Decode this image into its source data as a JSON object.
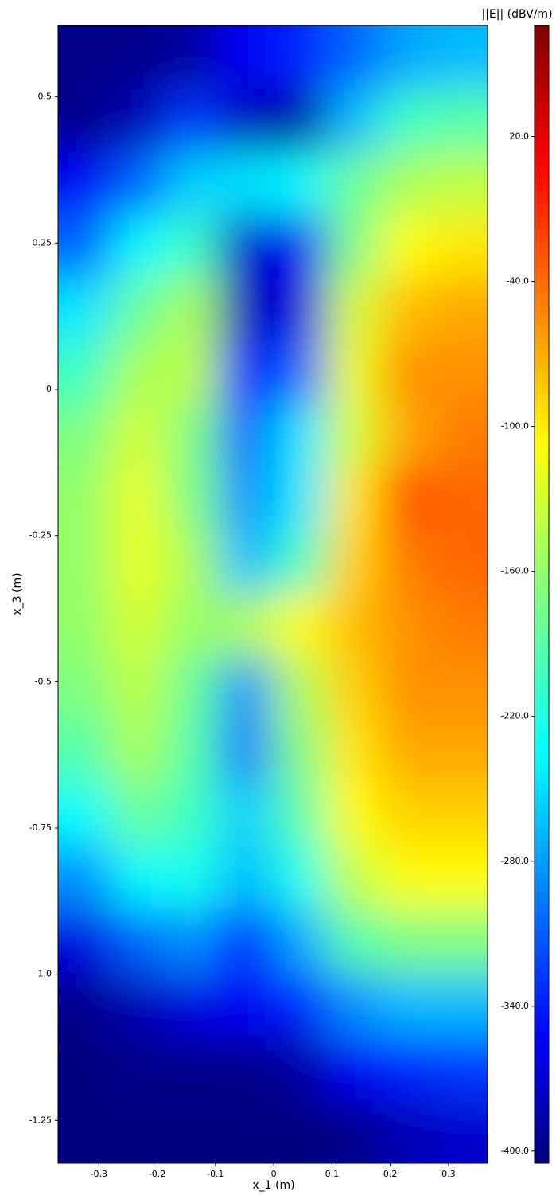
{
  "chart_data": {
    "type": "heatmap",
    "xlabel": "x_1 (m)",
    "ylabel": "x_3 (m)",
    "colorbar_label": "||E|| (dBV/m)",
    "colormap": "jet",
    "x": [
      -0.324,
      -0.232,
      -0.14,
      -0.048,
      0.044,
      0.136,
      0.228,
      0.32
    ],
    "y": [
      0.568,
      0.46,
      0.352,
      0.244,
      0.136,
      0.028,
      -0.08,
      -0.188,
      -0.296,
      -0.404,
      -0.512,
      -0.62,
      -0.728,
      -0.836,
      -0.944,
      -1.052,
      -1.16,
      -1.268
    ],
    "values": [
      [
        -400,
        -400,
        -390,
        -350,
        -330,
        -300,
        -270,
        -260
      ],
      [
        -400,
        -380,
        -320,
        -380,
        -390,
        -260,
        -200,
        -190
      ],
      [
        -350,
        -300,
        -250,
        -240,
        -230,
        -180,
        -150,
        -140
      ],
      [
        -300,
        -230,
        -200,
        -370,
        -350,
        -170,
        -110,
        -100
      ],
      [
        -240,
        -180,
        -150,
        -380,
        -360,
        -130,
        -80,
        -70
      ],
      [
        -200,
        -150,
        -140,
        -340,
        -300,
        -120,
        -60,
        -60
      ],
      [
        -170,
        -130,
        -170,
        -300,
        -240,
        -130,
        -70,
        -50
      ],
      [
        -160,
        -120,
        -170,
        -280,
        -240,
        -100,
        -30,
        -40
      ],
      [
        -160,
        -120,
        -150,
        -260,
        -200,
        -90,
        -50,
        -40
      ],
      [
        -160,
        -130,
        -160,
        -150,
        -110,
        -80,
        -60,
        -50
      ],
      [
        -170,
        -140,
        -180,
        -280,
        -150,
        -90,
        -60,
        -60
      ],
      [
        -190,
        -150,
        -190,
        -290,
        -170,
        -100,
        -70,
        -70
      ],
      [
        -230,
        -180,
        -200,
        -250,
        -190,
        -110,
        -90,
        -90
      ],
      [
        -280,
        -230,
        -220,
        -260,
        -220,
        -140,
        -110,
        -110
      ],
      [
        -360,
        -300,
        -280,
        -330,
        -270,
        -190,
        -170,
        -170
      ],
      [
        -400,
        -380,
        -360,
        -350,
        -330,
        -280,
        -260,
        -260
      ],
      [
        -405,
        -400,
        -400,
        -400,
        -390,
        -350,
        -330,
        -320
      ],
      [
        -405,
        -405,
        -405,
        -405,
        -405,
        -400,
        -380,
        -370
      ]
    ],
    "xlim": [
      -0.37,
      0.367
    ],
    "ylim": [
      -1.323,
      0.622
    ],
    "xticks": [
      -0.3,
      -0.2,
      -0.1,
      0,
      0.1,
      0.2,
      0.3
    ],
    "yticks": [
      0.5,
      0.25,
      0,
      -0.25,
      -0.5,
      -0.75,
      {
        "value": -1.0,
        "label": "-1.0"
      },
      -1.25
    ],
    "clim": [
      -405,
      66
    ],
    "cticks": [
      {
        "value": 20,
        "label": "20.0"
      },
      {
        "value": -40,
        "label": "-40.0"
      },
      {
        "value": -100,
        "label": "-100.0"
      },
      {
        "value": -160,
        "label": "-160.0"
      },
      {
        "value": -220,
        "label": "-220.0"
      },
      {
        "value": -280,
        "label": "-280.0"
      },
      {
        "value": -340,
        "label": "-340.0"
      },
      {
        "value": -400,
        "label": "-400.0"
      }
    ]
  }
}
